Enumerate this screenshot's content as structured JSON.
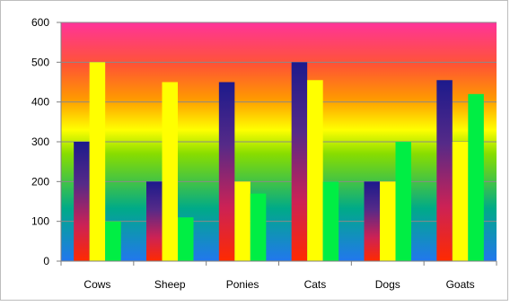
{
  "chart_data": {
    "type": "bar",
    "categories": [
      "Cows",
      "Sheep",
      "Ponies",
      "Cats",
      "Dogs",
      "Goats"
    ],
    "series": [
      {
        "values": [
          300,
          200,
          450,
          500,
          200,
          455
        ],
        "color": "#1c1a8c"
      },
      {
        "values": [
          500,
          450,
          200,
          455,
          200,
          300
        ],
        "color": "#ffff00"
      },
      {
        "values": [
          100,
          110,
          170,
          200,
          300,
          420
        ],
        "color": "#00ee44"
      }
    ],
    "yticks": [
      0,
      100,
      200,
      300,
      400,
      500,
      600
    ],
    "ylim": [
      0,
      600
    ],
    "grid": true,
    "legend": "none",
    "title": "",
    "xlabel": "",
    "ylabel": "",
    "background_gradient": [
      "#2277ee",
      "#00aa88",
      "#88dd00",
      "#ffff00",
      "#ff9900",
      "#ff5533",
      "#ff3399"
    ],
    "bar_gradient_series1": [
      "#ff2a00",
      "#cc2255",
      "#552a88",
      "#1c1a8c"
    ]
  }
}
